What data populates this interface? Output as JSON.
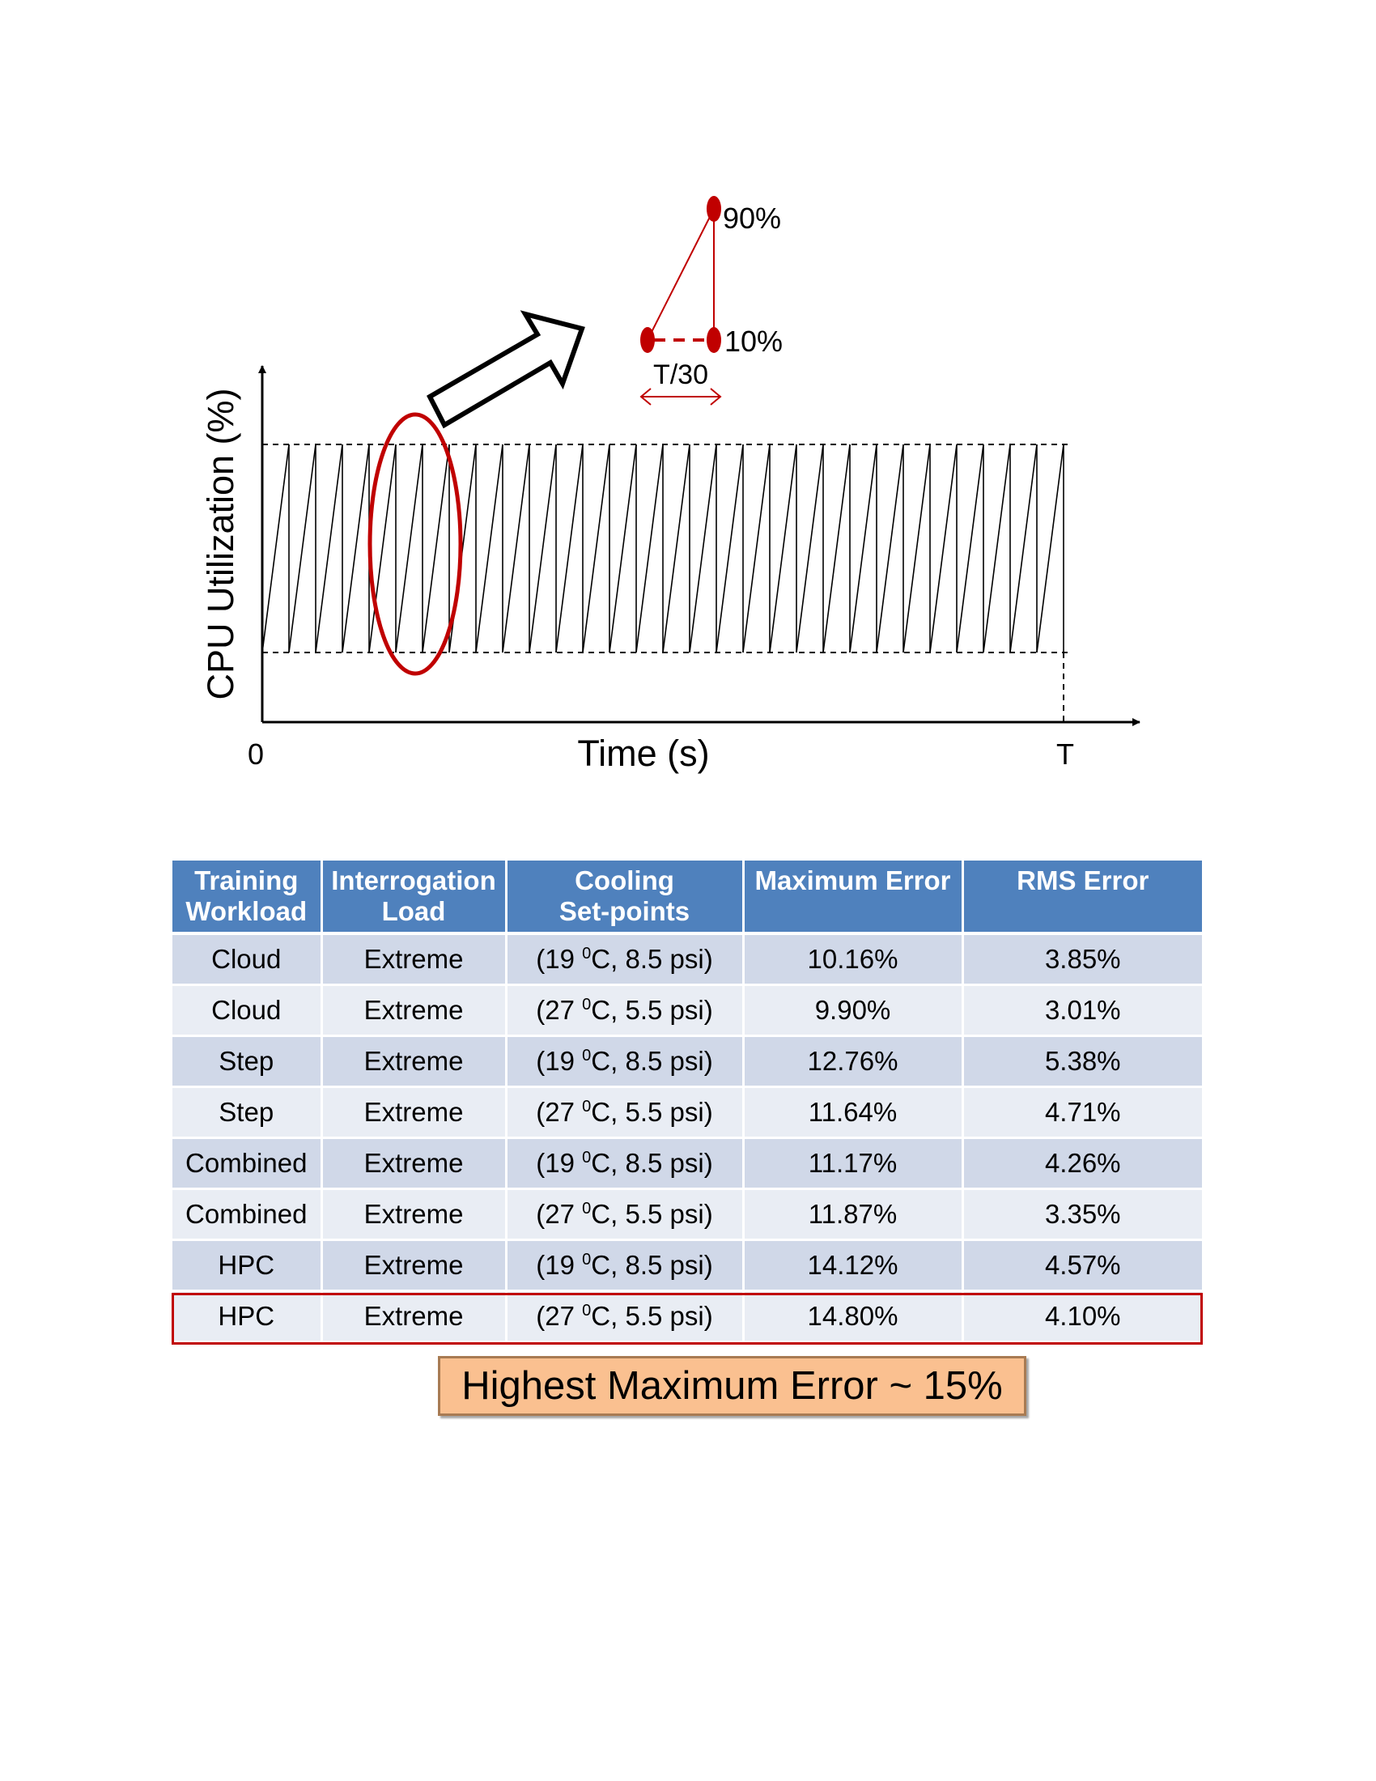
{
  "chart_data": {
    "type": "line",
    "xlabel": "Time (s)",
    "ylabel": "CPU Utilization (%)",
    "x_ticks": [
      "0",
      "T"
    ],
    "y_range_pct": [
      10,
      90
    ],
    "cycles": 30,
    "inset": {
      "high_label": "90%",
      "low_label": "10%",
      "period_label": "T/30"
    }
  },
  "table": {
    "headers": [
      [
        "Training",
        "Workload"
      ],
      [
        "Interrogation",
        "Load"
      ],
      [
        "Cooling",
        "Set-points"
      ],
      [
        "Maximum Error"
      ],
      [
        "RMS Error"
      ]
    ],
    "rows": [
      {
        "workload": "Cloud",
        "load": "Extreme",
        "temp": "19",
        "psi": "8.5 psi",
        "max_error": "10.16%",
        "rms_error": "3.85%"
      },
      {
        "workload": "Cloud",
        "load": "Extreme",
        "temp": "27",
        "psi": "5.5 psi",
        "max_error": "9.90%",
        "rms_error": "3.01%"
      },
      {
        "workload": "Step",
        "load": "Extreme",
        "temp": "19",
        "psi": "8.5 psi",
        "max_error": "12.76%",
        "rms_error": "5.38%"
      },
      {
        "workload": "Step",
        "load": "Extreme",
        "temp": "27",
        "psi": "5.5 psi",
        "max_error": "11.64%",
        "rms_error": "4.71%"
      },
      {
        "workload": "Combined",
        "load": "Extreme",
        "temp": "19",
        "psi": "8.5 psi",
        "max_error": "11.17%",
        "rms_error": "4.26%"
      },
      {
        "workload": "Combined",
        "load": "Extreme",
        "temp": "27",
        "psi": "5.5 psi",
        "max_error": "11.87%",
        "rms_error": "3.35%"
      },
      {
        "workload": "HPC",
        "load": "Extreme",
        "temp": "19",
        "psi": "8.5 psi",
        "max_error": "14.12%",
        "rms_error": "4.57%"
      },
      {
        "workload": "HPC",
        "load": "Extreme",
        "temp": "27",
        "psi": "5.5 psi",
        "max_error": "14.80%",
        "rms_error": "4.10%"
      }
    ]
  },
  "callout": {
    "text": "Highest Maximum Error ~ 15%"
  },
  "colors": {
    "header": "#4f81bd",
    "row_odd": "#d0d8e8",
    "row_even": "#e9edf4",
    "highlight": "#c00000",
    "callout_fill": "#fac090"
  }
}
